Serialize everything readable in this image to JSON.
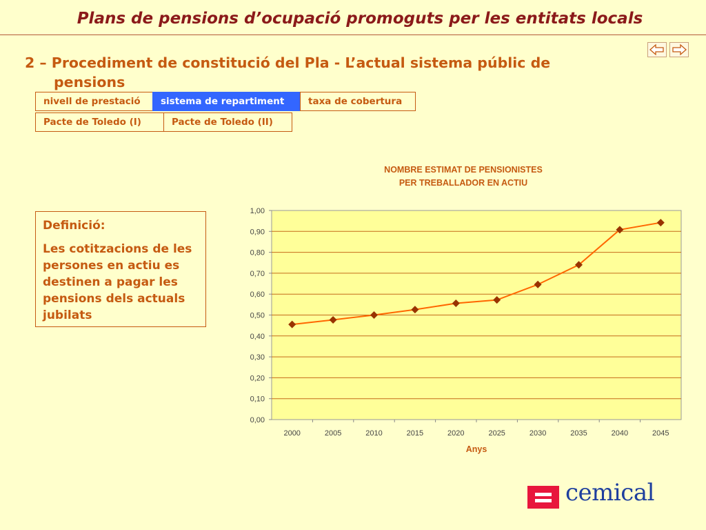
{
  "header": {
    "title": "Plans de pensions d’ocupació promoguts per les entitats locals"
  },
  "navigation": {
    "prev_icon": "arrow-left-icon",
    "next_icon": "arrow-right-icon"
  },
  "section": {
    "heading_line1": "2 – Procediment de constitució del Pla - L’actual sistema públic de",
    "heading_line2": "pensions"
  },
  "tabs": [
    {
      "label": "nivell de prestació",
      "active": false
    },
    {
      "label": "sistema de repartiment",
      "active": true
    },
    {
      "label": "taxa de cobertura",
      "active": false
    },
    {
      "label": "Pacte de Toledo (I)",
      "active": false
    },
    {
      "label": "Pacte de Toledo (II)",
      "active": false
    }
  ],
  "definition": {
    "title": "Definició:",
    "text": "Les cotitzacions de les persones en actiu es destinen a pagar les pensions dels actuals jubilats"
  },
  "chart_data": {
    "type": "line",
    "title_line1": "NOMBRE ESTIMAT DE PENSIONISTES",
    "title_line2": "PER TREBALLADOR EN ACTIU",
    "xlabel": "Anys",
    "ylabel": "",
    "categories": [
      "2000",
      "2005",
      "2010",
      "2015",
      "2020",
      "2025",
      "2030",
      "2035",
      "2040",
      "2045"
    ],
    "series": [
      {
        "values": [
          0.455,
          0.477,
          0.5,
          0.526,
          0.556,
          0.572,
          0.646,
          0.74,
          0.908,
          0.942
        ]
      }
    ],
    "ylim": [
      0,
      1
    ],
    "yticks": [
      "0,00",
      "0,10",
      "0,20",
      "0,30",
      "0,40",
      "0,50",
      "0,60",
      "0,70",
      "0,80",
      "0,90",
      "1,00"
    ],
    "grid": true,
    "legend": "none",
    "colors": {
      "plot_bg": "#ffff99",
      "line": "#ff6600",
      "marker": "#993300",
      "grid": "#c46a1a",
      "text": "#c55a11",
      "tick_text": "#444444"
    }
  },
  "logo": {
    "text": "cemical",
    "box_color": "#e8163c",
    "text_color": "#1e3f9e"
  }
}
